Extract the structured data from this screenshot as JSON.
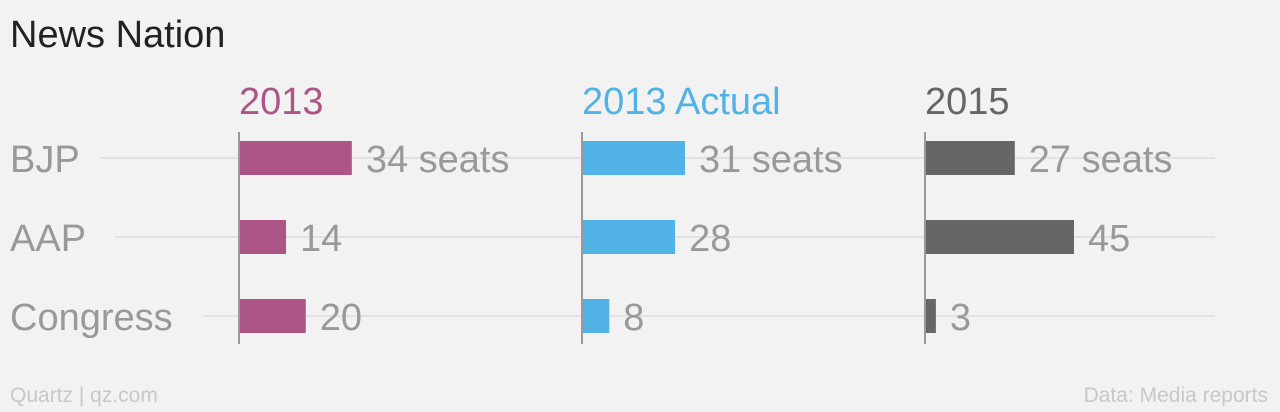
{
  "chart_data": {
    "type": "bar",
    "title": "News Nation",
    "categories": [
      "BJP",
      "AAP",
      "Congress"
    ],
    "series": [
      {
        "name": "2013",
        "color": "#ad5686",
        "values": [
          34,
          14,
          20
        ],
        "labels": [
          "34 seats",
          "14",
          "20"
        ]
      },
      {
        "name": "2013 Actual",
        "color": "#51b2e5",
        "values": [
          31,
          28,
          8
        ],
        "labels": [
          "31 seats",
          "28",
          "8"
        ]
      },
      {
        "name": "2015",
        "color": "#666666",
        "values": [
          27,
          45,
          3
        ],
        "labels": [
          "27 seats",
          "45",
          "3"
        ]
      }
    ],
    "xlim": [
      0,
      45
    ],
    "grid": true
  },
  "footer": {
    "source_left": "Quartz | qz.com",
    "source_right": "Data: Media reports"
  }
}
